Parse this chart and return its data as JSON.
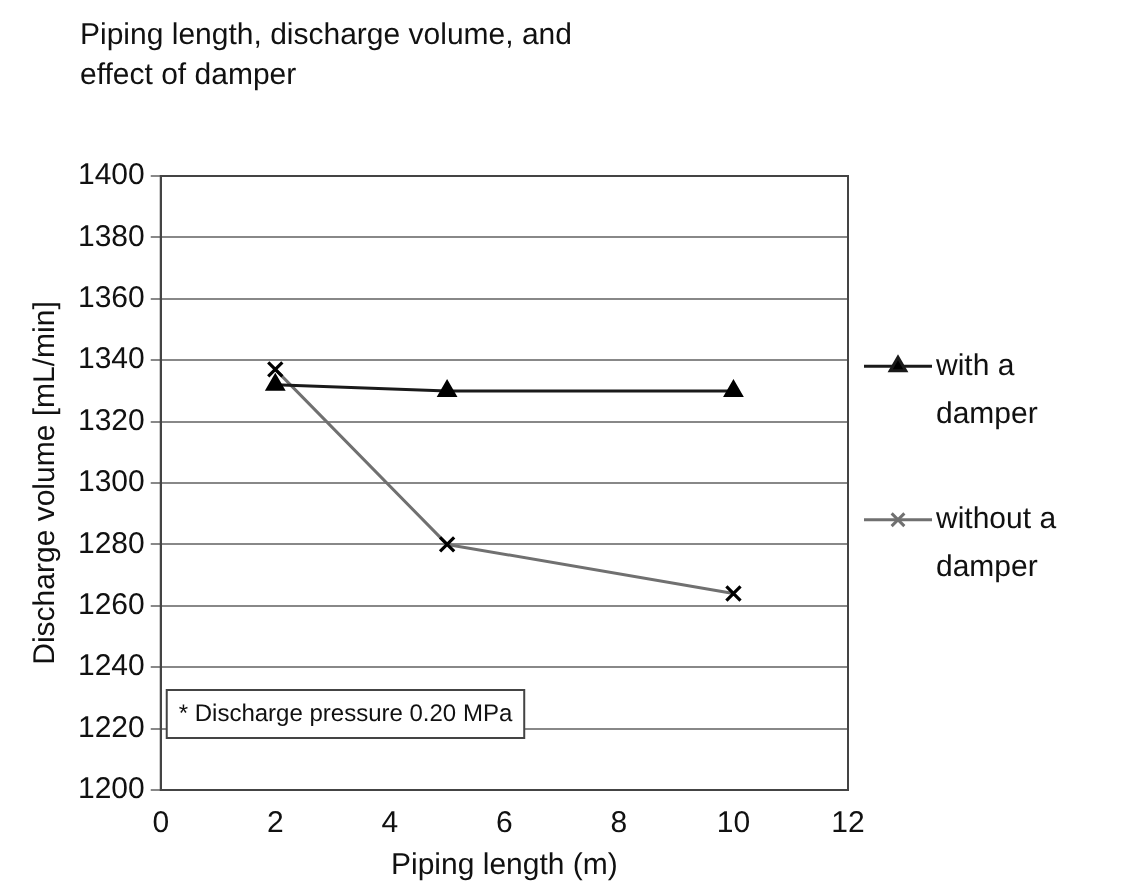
{
  "chart_data": {
    "type": "line",
    "title": "Piping length, discharge volume, and effect of damper",
    "xlabel": "Piping length (m)",
    "ylabel": "Discharge volume [mL/min]",
    "series": [
      {
        "name": "with a damper",
        "color": "#1a1a1a",
        "marker": "triangle",
        "x": [
          2,
          5,
          10
        ],
        "values": [
          1332,
          1330,
          1330
        ]
      },
      {
        "name": "without a damper",
        "color": "#707070",
        "marker": "cross",
        "x": [
          2,
          5,
          10
        ],
        "values": [
          1337,
          1280,
          1264
        ]
      }
    ],
    "xlim": [
      0,
      12
    ],
    "xticks": [
      0,
      2,
      4,
      6,
      8,
      10,
      12
    ],
    "ylim": [
      1200,
      1400
    ],
    "yticks": [
      1200,
      1220,
      1240,
      1260,
      1280,
      1300,
      1320,
      1340,
      1360,
      1380,
      1400
    ],
    "grid": "y",
    "legend": "right",
    "annotations": [
      "* Discharge pressure 0.20 MPa"
    ]
  }
}
